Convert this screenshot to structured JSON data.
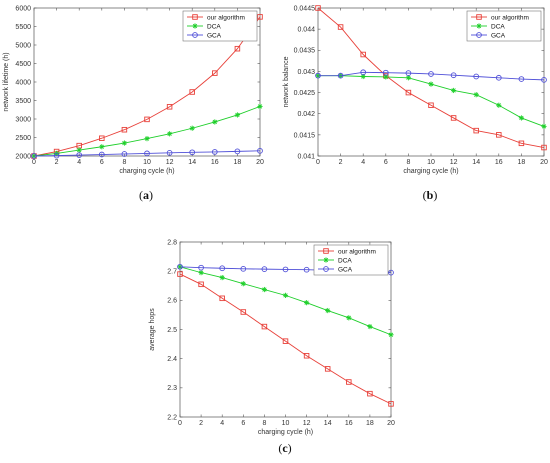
{
  "colors": {
    "our_algorithm": "#e8413a",
    "dca": "#1ecf2a",
    "gca": "#5050d8"
  },
  "chart_data": [
    {
      "type": "line",
      "caption": {
        "open": "(",
        "letter": "a",
        "close": ")"
      },
      "xlabel": "charging cycle (h)",
      "ylabel": "network lifetime (h)",
      "xlim": [
        0,
        20
      ],
      "ylim": [
        2000,
        6000
      ],
      "xticks": [
        "0",
        "2",
        "4",
        "6",
        "8",
        "10",
        "12",
        "14",
        "16",
        "18",
        "20"
      ],
      "yticks": [
        "2000",
        "2500",
        "3000",
        "3500",
        "4000",
        "4500",
        "5000",
        "5500",
        "6000"
      ],
      "legend_position": "top-right",
      "x": [
        0,
        2,
        4,
        6,
        8,
        10,
        12,
        14,
        16,
        18,
        20
      ],
      "series": [
        {
          "name": "our algorithm",
          "marker": "square",
          "color_key": "our_algorithm",
          "values": [
            2000,
            2120,
            2280,
            2480,
            2710,
            2990,
            3330,
            3730,
            4240,
            4900,
            5760
          ]
        },
        {
          "name": "DCA",
          "marker": "star",
          "color_key": "dca",
          "values": [
            2000,
            2070,
            2160,
            2250,
            2350,
            2470,
            2600,
            2750,
            2920,
            3110,
            3340
          ]
        },
        {
          "name": "GCA",
          "marker": "circle",
          "color_key": "gca",
          "values": [
            2000,
            2010,
            2025,
            2040,
            2055,
            2070,
            2085,
            2100,
            2110,
            2125,
            2140
          ]
        }
      ]
    },
    {
      "type": "line",
      "caption": {
        "open": "(",
        "letter": "b",
        "close": ")"
      },
      "xlabel": "charging cycle (h)",
      "ylabel": "network balance",
      "xlim": [
        0,
        20
      ],
      "ylim": [
        0.041,
        0.0445
      ],
      "xticks": [
        "0",
        "2",
        "4",
        "6",
        "8",
        "10",
        "12",
        "14",
        "16",
        "18",
        "20"
      ],
      "yticks": [
        "0.041",
        "0.0415",
        "0.042",
        "0.0425",
        "0.043",
        "0.0435",
        "0.044",
        "0.0445"
      ],
      "legend_position": "top-right",
      "x": [
        0,
        2,
        4,
        6,
        8,
        10,
        12,
        14,
        16,
        18,
        20
      ],
      "series": [
        {
          "name": "our algorithm",
          "marker": "square",
          "color_key": "our_algorithm",
          "values": [
            0.0445,
            0.04405,
            0.0434,
            0.0429,
            0.0425,
            0.0422,
            0.0419,
            0.0416,
            0.0415,
            0.0413,
            0.0412
          ]
        },
        {
          "name": "DCA",
          "marker": "star",
          "color_key": "dca",
          "values": [
            0.0429,
            0.0429,
            0.04288,
            0.04287,
            0.04285,
            0.0427,
            0.04255,
            0.04245,
            0.0422,
            0.0419,
            0.0417
          ]
        },
        {
          "name": "GCA",
          "marker": "circle",
          "color_key": "gca",
          "values": [
            0.0429,
            0.0429,
            0.04298,
            0.04297,
            0.04296,
            0.04294,
            0.04291,
            0.04288,
            0.04285,
            0.04282,
            0.0428
          ]
        }
      ]
    },
    {
      "type": "line",
      "caption": {
        "open": "(",
        "letter": "c",
        "close": ")"
      },
      "xlabel": "charging cycle (h)",
      "ylabel": "average hops",
      "xlim": [
        0,
        20
      ],
      "ylim": [
        2.2,
        2.8
      ],
      "xticks": [
        "0",
        "2",
        "4",
        "6",
        "8",
        "10",
        "12",
        "14",
        "16",
        "18",
        "20"
      ],
      "yticks": [
        "2.2",
        "2.3",
        "2.4",
        "2.5",
        "2.6",
        "2.7",
        "2.8"
      ],
      "legend_position": "top-right",
      "x": [
        0,
        2,
        4,
        6,
        8,
        10,
        12,
        14,
        16,
        18,
        20
      ],
      "series": [
        {
          "name": "our algorithm",
          "marker": "square",
          "color_key": "our_algorithm",
          "values": [
            2.69,
            2.655,
            2.607,
            2.56,
            2.51,
            2.46,
            2.41,
            2.365,
            2.32,
            2.28,
            2.245
          ]
        },
        {
          "name": "DCA",
          "marker": "star",
          "color_key": "dca",
          "values": [
            2.715,
            2.695,
            2.678,
            2.657,
            2.637,
            2.617,
            2.592,
            2.565,
            2.54,
            2.51,
            2.482
          ]
        },
        {
          "name": "GCA",
          "marker": "circle",
          "color_key": "gca",
          "values": [
            2.715,
            2.712,
            2.71,
            2.708,
            2.707,
            2.706,
            2.705,
            2.703,
            2.701,
            2.699,
            2.695
          ]
        }
      ]
    }
  ]
}
